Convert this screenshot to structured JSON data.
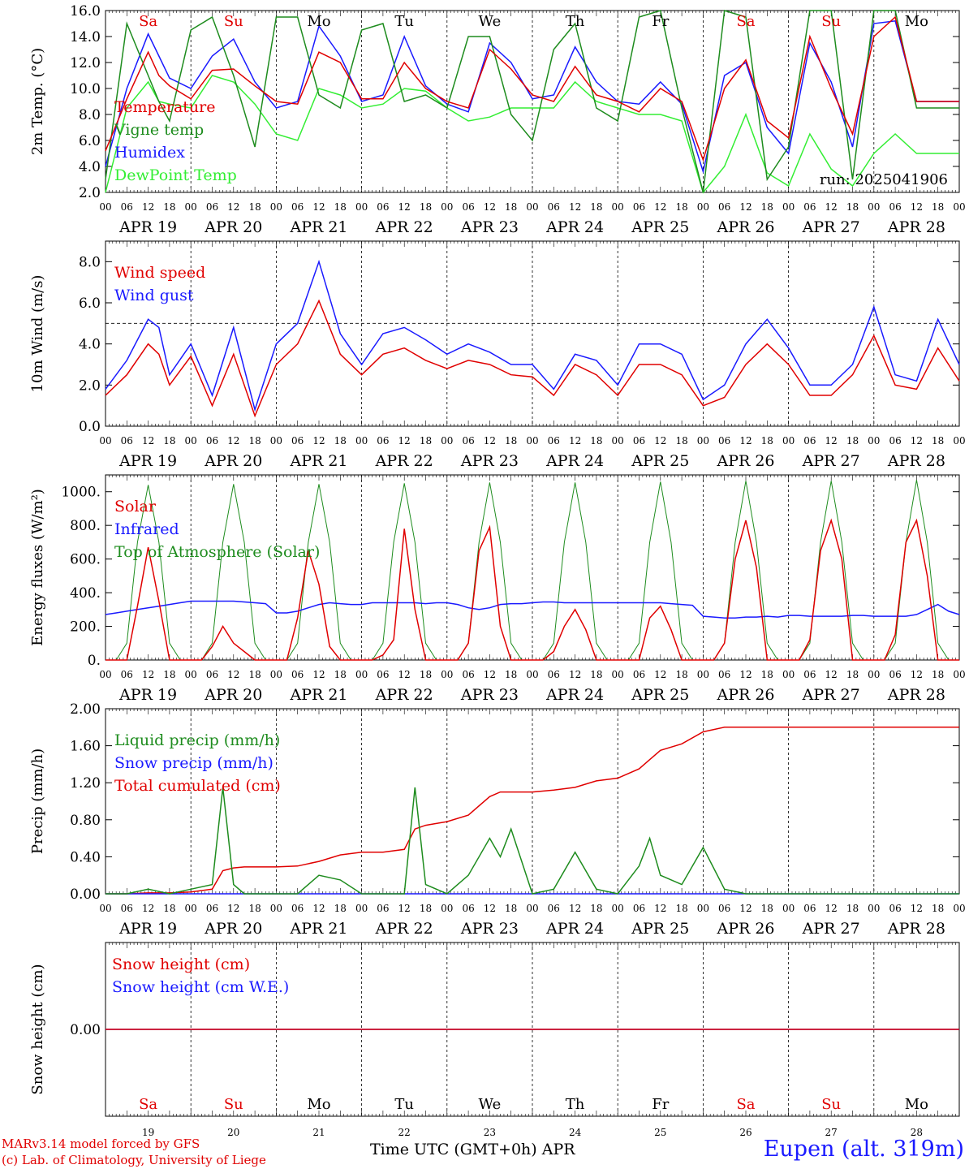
{
  "chart_data": [
    {
      "type": "line",
      "ylabel": "2m Temp. (°C)",
      "ylim": [
        2,
        16
      ],
      "yticks": [
        2,
        4,
        6,
        8,
        10,
        12,
        14,
        16
      ],
      "ytick_labels": [
        "2.0",
        "4.0",
        "6.0",
        "8.0",
        "10.0",
        "12.0",
        "14.0",
        "16.0"
      ],
      "grid": "vertical dashed lines at 00 UTC",
      "legend_position": "top-left",
      "annotation": "run: 2025041906",
      "day_names": [
        "Sa",
        "Su",
        "Mo",
        "Tu",
        "We",
        "Th",
        "Fr",
        "Sa",
        "Su",
        "Mo"
      ],
      "weekend_color": "#e00000",
      "x": [
        0,
        6,
        12,
        15,
        18,
        24,
        30,
        36,
        42,
        48,
        54,
        60,
        66,
        72,
        78,
        84,
        90,
        96,
        102,
        108,
        114,
        120,
        126,
        132,
        138,
        144,
        150,
        156,
        162,
        168,
        174,
        180,
        186,
        192,
        198,
        204,
        210,
        216,
        222,
        228,
        234,
        240
      ],
      "series": [
        {
          "name": "Temperature",
          "color": "#e00000",
          "values": [
            5.2,
            9.2,
            12.8,
            11.0,
            10.2,
            9.2,
            11.4,
            11.5,
            10.2,
            9.0,
            8.8,
            12.8,
            12.0,
            9.2,
            9.2,
            12.0,
            10.0,
            9.0,
            8.5,
            13.0,
            11.5,
            9.5,
            9.0,
            11.7,
            9.5,
            9.0,
            8.2,
            10.0,
            9.0,
            4.5,
            10.0,
            12.2,
            7.5,
            6.2,
            14.0,
            10.0,
            6.5,
            14.0,
            15.5,
            9.0,
            9.0,
            9.0
          ]
        },
        {
          "name": "Vigne temp",
          "color": "#1e8c1e",
          "values": [
            3.0,
            15.0,
            11.0,
            9.0,
            7.5,
            14.5,
            15.5,
            11.0,
            5.5,
            15.5,
            15.5,
            9.5,
            8.5,
            14.5,
            15.0,
            9.0,
            9.5,
            8.5,
            14.0,
            14.0,
            8.0,
            6.0,
            13.0,
            15.0,
            8.5,
            7.5,
            15.5,
            16.0,
            8.5,
            2.0,
            16.0,
            15.5,
            3.0,
            5.5,
            16.0,
            16.0,
            3.0,
            16.0,
            16.0,
            8.5,
            8.5,
            8.5
          ]
        },
        {
          "name": "Humidex",
          "color": "#1a1aff",
          "values": [
            4.0,
            10.0,
            14.2,
            12.5,
            10.8,
            10.0,
            12.5,
            13.8,
            10.5,
            8.5,
            9.0,
            14.8,
            12.5,
            9.0,
            9.5,
            14.0,
            10.2,
            8.8,
            8.2,
            13.5,
            12.0,
            9.2,
            9.5,
            13.2,
            10.5,
            9.0,
            8.8,
            10.5,
            8.8,
            3.6,
            11.0,
            12.0,
            7.0,
            5.0,
            13.5,
            10.5,
            5.5,
            15.0,
            15.2,
            9.0,
            9.0,
            9.0
          ]
        },
        {
          "name": "DewPoint Temp",
          "color": "#33ee33",
          "values": [
            0.0,
            8.5,
            10.5,
            9.0,
            8.8,
            8.5,
            11.0,
            10.5,
            8.8,
            6.5,
            6.0,
            10.0,
            9.5,
            8.5,
            8.8,
            10.0,
            9.8,
            8.5,
            7.5,
            7.8,
            8.5,
            8.5,
            8.5,
            10.5,
            9.0,
            8.5,
            8.0,
            8.0,
            7.5,
            2.0,
            4.0,
            8.0,
            3.5,
            2.5,
            6.5,
            3.8,
            2.5,
            5.0,
            6.5,
            5.0,
            5.0,
            5.0
          ]
        }
      ]
    },
    {
      "type": "line",
      "ylabel": "10m Wind (m/s)",
      "ylim": [
        0,
        9
      ],
      "yticks": [
        0,
        2,
        4,
        6,
        8
      ],
      "ytick_labels": [
        "0.0",
        "2.0",
        "4.0",
        "6.0",
        "8.0"
      ],
      "reference_line": 5.0,
      "grid": "vertical dashed lines at 00 UTC",
      "legend_position": "top-left",
      "x": [
        0,
        6,
        12,
        15,
        18,
        24,
        30,
        36,
        42,
        48,
        54,
        60,
        66,
        72,
        78,
        84,
        90,
        96,
        102,
        108,
        114,
        120,
        126,
        132,
        138,
        144,
        150,
        156,
        162,
        168,
        174,
        180,
        186,
        192,
        198,
        204,
        210,
        216,
        222,
        228,
        234,
        240
      ],
      "series": [
        {
          "name": "Wind speed",
          "color": "#e00000",
          "values": [
            1.5,
            2.5,
            4.0,
            3.5,
            2.0,
            3.4,
            1.0,
            3.5,
            0.5,
            3.0,
            4.0,
            6.1,
            3.5,
            2.5,
            3.5,
            3.8,
            3.2,
            2.8,
            3.2,
            3.0,
            2.5,
            2.4,
            1.5,
            3.0,
            2.5,
            1.5,
            3.0,
            3.0,
            2.5,
            1.0,
            1.4,
            3.0,
            4.0,
            3.0,
            1.5,
            1.5,
            2.5,
            4.4,
            2.0,
            1.8,
            3.8,
            2.2
          ]
        },
        {
          "name": "Wind gust",
          "color": "#1a1aff",
          "values": [
            1.8,
            3.2,
            5.2,
            4.8,
            2.5,
            4.0,
            1.5,
            4.8,
            0.8,
            4.0,
            5.0,
            8.0,
            4.5,
            3.0,
            4.5,
            4.8,
            4.2,
            3.5,
            4.0,
            3.6,
            3.0,
            3.0,
            1.8,
            3.5,
            3.2,
            2.0,
            4.0,
            4.0,
            3.5,
            1.3,
            2.0,
            4.0,
            5.2,
            3.8,
            2.0,
            2.0,
            3.0,
            5.8,
            2.5,
            2.2,
            5.2,
            3.0
          ]
        }
      ]
    },
    {
      "type": "line",
      "ylabel": "Energy fluxes (W/m²)",
      "ylim": [
        0,
        1100
      ],
      "yticks": [
        0,
        200,
        400,
        600,
        800,
        1000
      ],
      "ytick_labels": [
        "0.",
        "200.",
        "400.",
        "600.",
        "800.",
        "1000."
      ],
      "grid": "vertical dashed lines at 00 UTC",
      "legend_position": "top-left",
      "x": [
        0,
        3,
        6,
        9,
        12,
        15,
        18,
        21,
        24,
        27,
        30,
        33,
        36,
        39,
        42,
        45,
        48,
        51,
        54,
        57,
        60,
        63,
        66,
        69,
        72,
        75,
        78,
        81,
        84,
        87,
        90,
        93,
        96,
        99,
        102,
        105,
        108,
        111,
        114,
        117,
        120,
        123,
        126,
        129,
        132,
        135,
        138,
        141,
        144,
        147,
        150,
        153,
        156,
        159,
        162,
        165,
        168,
        171,
        174,
        177,
        180,
        183,
        186,
        189,
        192,
        195,
        198,
        201,
        204,
        207,
        210,
        213,
        216,
        219,
        222,
        225,
        228,
        231,
        234,
        237,
        240
      ],
      "series": [
        {
          "name": "Solar",
          "color": "#e00000",
          "values": [
            0,
            0,
            0,
            320,
            670,
            350,
            0,
            0,
            0,
            0,
            80,
            200,
            100,
            50,
            0,
            0,
            0,
            0,
            250,
            650,
            450,
            80,
            0,
            0,
            0,
            0,
            30,
            120,
            780,
            300,
            0,
            0,
            0,
            0,
            100,
            650,
            790,
            200,
            0,
            0,
            0,
            0,
            50,
            200,
            300,
            180,
            0,
            0,
            0,
            0,
            0,
            250,
            320,
            180,
            0,
            0,
            0,
            0,
            100,
            600,
            830,
            550,
            0,
            0,
            0,
            0,
            120,
            650,
            830,
            600,
            0,
            0,
            0,
            0,
            150,
            700,
            830,
            500,
            0,
            0,
            0
          ]
        },
        {
          "name": "Infrared",
          "color": "#1a1aff",
          "values": [
            270,
            280,
            290,
            300,
            310,
            320,
            330,
            340,
            350,
            350,
            350,
            350,
            350,
            345,
            340,
            335,
            280,
            280,
            290,
            310,
            330,
            340,
            335,
            330,
            330,
            340,
            340,
            340,
            340,
            340,
            335,
            340,
            340,
            330,
            310,
            300,
            310,
            330,
            335,
            335,
            340,
            345,
            345,
            340,
            340,
            340,
            340,
            340,
            340,
            340,
            340,
            340,
            340,
            335,
            330,
            325,
            260,
            255,
            250,
            250,
            255,
            255,
            260,
            255,
            265,
            265,
            260,
            260,
            260,
            260,
            265,
            265,
            260,
            260,
            260,
            260,
            270,
            300,
            330,
            290,
            270
          ]
        },
        {
          "name": "Top of Atmosphere (Solar)",
          "color": "#1e8c1e",
          "values": [
            0,
            0,
            100,
            700,
            1040,
            700,
            100,
            0,
            0,
            0,
            100,
            700,
            1045,
            700,
            100,
            0,
            0,
            0,
            100,
            700,
            1045,
            700,
            100,
            0,
            0,
            0,
            100,
            700,
            1050,
            700,
            100,
            0,
            0,
            0,
            100,
            700,
            1055,
            700,
            100,
            0,
            0,
            0,
            100,
            700,
            1055,
            700,
            100,
            0,
            0,
            0,
            100,
            700,
            1060,
            700,
            100,
            0,
            0,
            0,
            100,
            700,
            1065,
            700,
            100,
            0,
            0,
            0,
            100,
            700,
            1065,
            700,
            100,
            0,
            0,
            0,
            100,
            700,
            1070,
            700,
            100,
            0,
            0
          ]
        }
      ]
    },
    {
      "type": "line",
      "ylabel": "Precip (mm/h)",
      "ylim": [
        0,
        2
      ],
      "yticks": [
        0,
        0.4,
        0.8,
        1.2,
        1.6,
        2.0
      ],
      "ytick_labels": [
        "0.00",
        "0.40",
        "0.80",
        "1.20",
        "1.60",
        "2.00"
      ],
      "grid": "vertical dashed lines at 00 UTC",
      "legend_position": "top-left",
      "x": [
        0,
        6,
        12,
        18,
        24,
        30,
        33,
        36,
        39,
        42,
        48,
        54,
        60,
        66,
        72,
        78,
        84,
        87,
        90,
        96,
        102,
        108,
        111,
        114,
        120,
        126,
        132,
        138,
        144,
        150,
        153,
        156,
        162,
        168,
        174,
        180,
        186,
        192,
        198,
        204,
        210,
        216,
        222,
        228,
        234,
        240
      ],
      "series": [
        {
          "name": "Liquid precip (mm/h)",
          "color": "#1e8c1e",
          "values": [
            0,
            0,
            0.05,
            0,
            0.05,
            0.1,
            1.15,
            0.1,
            0,
            0,
            0,
            0,
            0.2,
            0.15,
            0,
            0,
            0,
            1.15,
            0.1,
            0,
            0.2,
            0.6,
            0.4,
            0.7,
            0,
            0.05,
            0.45,
            0.05,
            0,
            0.3,
            0.6,
            0.2,
            0.1,
            0.5,
            0.05,
            0,
            0,
            0,
            0,
            0,
            0,
            0,
            0,
            0,
            0,
            0
          ]
        },
        {
          "name": "Snow precip (mm/h)",
          "color": "#1a1aff",
          "values": [
            0,
            0,
            0,
            0,
            0,
            0,
            0,
            0,
            0,
            0,
            0,
            0,
            0,
            0,
            0,
            0,
            0,
            0,
            0,
            0,
            0,
            0,
            0,
            0,
            0,
            0,
            0,
            0,
            0,
            0,
            0,
            0,
            0,
            0,
            0,
            0,
            0,
            0,
            0,
            0,
            0,
            0,
            0,
            0,
            0,
            0
          ]
        },
        {
          "name": "Total cumulated (cm)",
          "color": "#e00000",
          "values": [
            0,
            0,
            0.01,
            0.01,
            0.02,
            0.05,
            0.25,
            0.28,
            0.29,
            0.29,
            0.29,
            0.3,
            0.35,
            0.42,
            0.45,
            0.45,
            0.48,
            0.7,
            0.74,
            0.78,
            0.85,
            1.05,
            1.1,
            1.1,
            1.1,
            1.12,
            1.15,
            1.22,
            1.25,
            1.35,
            1.45,
            1.55,
            1.62,
            1.75,
            1.8,
            1.8,
            1.8,
            1.8,
            1.8,
            1.8,
            1.8,
            1.8,
            1.8,
            1.8,
            1.8,
            1.8
          ]
        }
      ]
    },
    {
      "type": "line",
      "ylabel": "Snow height (cm)",
      "ylim": [
        -1,
        1
      ],
      "yticks": [
        0
      ],
      "ytick_labels": [
        "0.00"
      ],
      "grid": "vertical dashed lines at 00 UTC",
      "legend_position": "top-left",
      "day_names": [
        "Sa",
        "Su",
        "Mo",
        "Tu",
        "We",
        "Th",
        "Fr",
        "Sa",
        "Su",
        "Mo"
      ],
      "day_numbers": [
        "19",
        "20",
        "21",
        "22",
        "23",
        "24",
        "25",
        "26",
        "27",
        "28"
      ],
      "x": [
        0,
        240
      ],
      "series": [
        {
          "name": "Snow height (cm)",
          "color": "#e00000",
          "values": [
            0,
            0
          ]
        },
        {
          "name": "Snow height (cm W.E.)",
          "color": "#1a1aff",
          "values": [
            0,
            0
          ]
        }
      ]
    }
  ],
  "x_axis": {
    "hour_labels": [
      "00",
      "06",
      "12",
      "18"
    ],
    "end_label": "00",
    "date_labels": [
      "APR 19",
      "APR 20",
      "APR 21",
      "APR 22",
      "APR 23",
      "APR 24",
      "APR 25",
      "APR 26",
      "APR 27",
      "APR 28"
    ]
  },
  "footer": {
    "model": "MARv3.14 model forced by GFS",
    "credit": "(c) Lab. of Climatology, University of Liege",
    "axis_title": "Time UTC (GMT+0h) APR",
    "station": "Eupen (alt. 319m)"
  },
  "colors": {
    "weekend": "#e00000",
    "station": "#1a1aff",
    "footer_text": "#e00000"
  }
}
